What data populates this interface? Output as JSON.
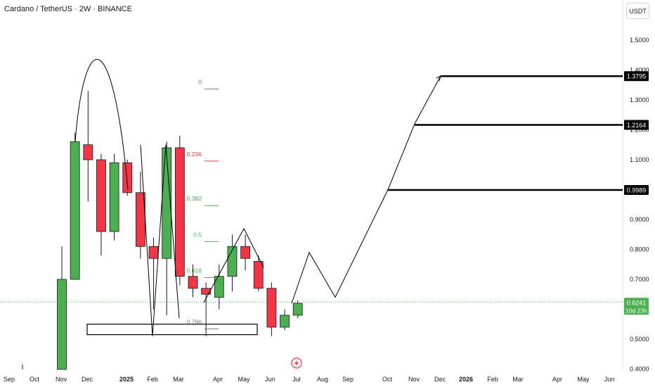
{
  "header": {
    "title": "Cardano / TetherUS · 2W · BINANCE"
  },
  "unit_label": "USDT",
  "colors": {
    "up": "#4caf50",
    "down": "#f23645",
    "fib_red": "#f23645",
    "fib_green": "#4caf50",
    "fib_gray": "#787b86",
    "last_price": "#4caf50",
    "line": "#000000"
  },
  "chart_data": {
    "type": "candlestick",
    "symbol": "Cardano / TetherUS",
    "interval": "2W",
    "exchange": "BINANCE",
    "ylim": [
      0.4,
      1.58
    ],
    "y_ticks": [
      0.4,
      0.5,
      0.6,
      0.7,
      0.8,
      0.9,
      1.0,
      1.1,
      1.2,
      1.3,
      1.4,
      1.5
    ],
    "y_tick_labels": [
      "0.4000",
      "0.5000",
      "0.6000",
      "0.7000",
      "0.8000",
      "0.9000",
      "1.0000",
      "1.1000",
      "1.2000",
      "1.3000",
      "1.4000",
      "1.5000"
    ],
    "x_tick_labels": [
      "Sep",
      "Oct",
      "Nov",
      "Dec",
      "2025",
      "Feb",
      "Mar",
      "Apr",
      "May",
      "Jun",
      "Jul",
      "Aug",
      "Sep",
      "Oct",
      "Nov",
      "Dec",
      "2026",
      "Feb",
      "Mar",
      "Apr",
      "May",
      "Jun"
    ],
    "candles": [
      {
        "open": 0.31,
        "high": 0.81,
        "low": 0.3,
        "close": 0.7
      },
      {
        "open": 0.7,
        "high": 1.19,
        "low": 0.7,
        "close": 1.16
      },
      {
        "open": 1.15,
        "high": 1.33,
        "low": 0.96,
        "close": 1.1
      },
      {
        "open": 1.1,
        "high": 1.12,
        "low": 0.78,
        "close": 0.86
      },
      {
        "open": 0.86,
        "high": 1.12,
        "low": 0.83,
        "close": 1.09
      },
      {
        "open": 1.09,
        "high": 1.1,
        "low": 0.98,
        "close": 0.99
      },
      {
        "open": 0.99,
        "high": 1.06,
        "low": 0.77,
        "close": 0.81
      },
      {
        "open": 0.81,
        "high": 0.84,
        "low": 0.6,
        "close": 0.77
      },
      {
        "open": 0.77,
        "high": 1.16,
        "low": 0.58,
        "close": 1.14
      },
      {
        "open": 1.14,
        "high": 1.18,
        "low": 0.68,
        "close": 0.71
      },
      {
        "open": 0.71,
        "high": 0.75,
        "low": 0.64,
        "close": 0.67
      },
      {
        "open": 0.67,
        "high": 0.69,
        "low": 0.51,
        "close": 0.65
      },
      {
        "open": 0.64,
        "high": 0.75,
        "low": 0.6,
        "close": 0.71
      },
      {
        "open": 0.71,
        "high": 0.85,
        "low": 0.66,
        "close": 0.81
      },
      {
        "open": 0.81,
        "high": 0.85,
        "low": 0.73,
        "close": 0.77
      },
      {
        "open": 0.76,
        "high": 0.78,
        "low": 0.66,
        "close": 0.67
      },
      {
        "open": 0.67,
        "high": 0.69,
        "low": 0.51,
        "close": 0.54
      },
      {
        "open": 0.54,
        "high": 0.6,
        "low": 0.53,
        "close": 0.58
      },
      {
        "open": 0.58,
        "high": 0.63,
        "low": 0.57,
        "close": 0.62
      }
    ],
    "last_price": {
      "value": 0.6241,
      "label": "0.6241",
      "countdown": "10d 23h"
    },
    "fibonacci": [
      {
        "level": "0",
        "price": 1.3364,
        "color": "#787b86"
      },
      {
        "level": "0.236",
        "price": 1.0957,
        "color": "#f23645"
      },
      {
        "level": "0.382",
        "price": 0.9466,
        "color": "#4caf50"
      },
      {
        "level": "0.5",
        "price": 0.8262,
        "color": "#4caf50"
      },
      {
        "level": "0.618",
        "price": 0.7058,
        "color": "#4caf50"
      },
      {
        "level": "0.786",
        "price": 0.5344,
        "color": "#787b86"
      }
    ],
    "targets": [
      {
        "price": 0.9989,
        "label": "0.9989"
      },
      {
        "price": 1.2164,
        "label": "1.2164"
      },
      {
        "price": 1.3795,
        "label": "1.3795"
      }
    ],
    "support_zone": {
      "top": 0.55,
      "bottom": 0.515
    },
    "projection_path": [
      {
        "date": "Jul",
        "price": 0.62
      },
      {
        "date": "late Jul",
        "price": 0.79
      },
      {
        "date": "mid Aug",
        "price": 0.64
      },
      {
        "date": "late Sep",
        "price": 1.0
      },
      {
        "date": "Nov",
        "price": 1.22
      },
      {
        "date": "Dec",
        "price": 1.38
      }
    ],
    "arc": {
      "start_price": 1.16,
      "peak_price": 1.34,
      "end_price": 1.0
    },
    "zigzag": [
      {
        "price": 1.15
      },
      {
        "price": 0.51
      },
      {
        "price": 1.15
      },
      {
        "price": 0.57
      }
    ]
  }
}
